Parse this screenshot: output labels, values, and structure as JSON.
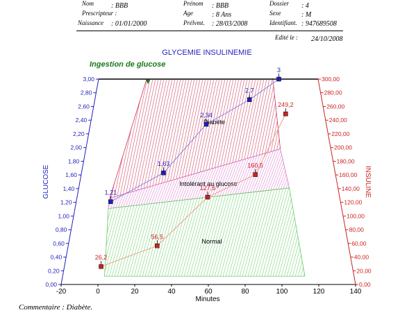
{
  "patient": {
    "nom_label": "Nom",
    "nom_value": ": BBB",
    "prescripteur_label": "Prescripteur :",
    "naissance_label": "Naissance",
    "naissance_value": ": 01/01/2000",
    "prenom_label": "Prénom",
    "prenom_value": ": BBB",
    "age_label": "Age",
    "age_value": ": 8 Ans",
    "prelvmt_label": "Prélvmt.",
    "prelvmt_value": ": 28/03/2008",
    "dossier_label": "Dossier",
    "dossier_value": ": 4",
    "sexe_label": "Sexe",
    "sexe_value": ": M",
    "identifiant_label": "Identifiant.",
    "identifiant_value": ": 947689508",
    "edite_label": "Edité le :",
    "edite_value": "24/10/2008"
  },
  "comment": "Commentaire : Diabète.",
  "colors": {
    "glucose": "#1f1fbf",
    "insuline": "#cc2222",
    "ingestion": "#1a7a1a",
    "diabete_zone": "#cc3355",
    "intolerant_zone": "#d977cc",
    "normal_zone": "#66cc66"
  },
  "chart_data": {
    "type": "line",
    "title": "GLYCEMIE INSULINEMIE",
    "xlabel": "Minutes",
    "ylabel_left": "GLUCOSE",
    "ylabel_right": "INSULINE",
    "xlim": [
      -20,
      140
    ],
    "x_ticks": [
      "-20",
      "0",
      "20",
      "40",
      "60",
      "80",
      "100",
      "120",
      "140"
    ],
    "ylim_left": [
      0,
      3
    ],
    "y_ticks_left": [
      "0,00",
      "0,20",
      "0,40",
      "0,60",
      "0,80",
      "1,00",
      "1,20",
      "1,40",
      "1,60",
      "1,80",
      "2,00",
      "2,20",
      "2,40",
      "2,60",
      "2,80",
      "3,00"
    ],
    "ylim_right": [
      0,
      300
    ],
    "y_ticks_right": [
      "0,00",
      "20,00",
      "40,00",
      "60,00",
      "80,00",
      "100,00",
      "120,00",
      "140,00",
      "160,00",
      "180,00",
      "200,00",
      "220,00",
      "240,00",
      "260,00",
      "280,00",
      "300,00"
    ],
    "annotation": "Ingestion de glucose",
    "zones": [
      "Diabète",
      "Intolérant au glucose",
      "Normal"
    ],
    "series": [
      {
        "axis": "left",
        "x": [
          0,
          30,
          60,
          90,
          120
        ],
        "values": [
          1.21,
          1.63,
          2.34,
          2.7,
          3
        ],
        "labels": [
          "1,21",
          "1,63",
          "2,34",
          "2,7",
          "3"
        ]
      },
      {
        "axis": "right",
        "x": [
          0,
          30,
          60,
          90,
          120
        ],
        "values": [
          26.2,
          56.5,
          127.6,
          160.5,
          249.2
        ],
        "labels": [
          "26,2",
          "56,5",
          "127,6",
          "160,5",
          "249,2"
        ]
      }
    ]
  }
}
